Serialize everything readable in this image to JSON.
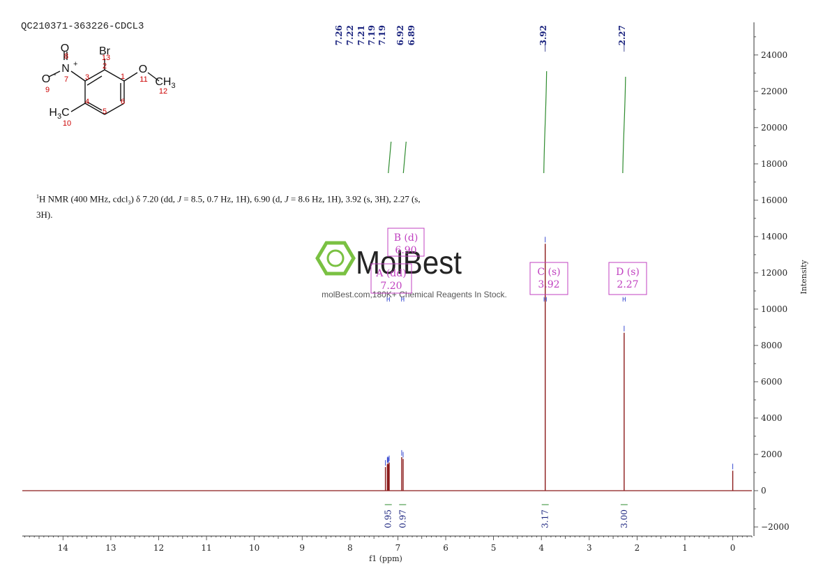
{
  "sample_id": "QC210371-363226-CDCL3",
  "nmr_description": {
    "prefix_sup": "1",
    "prefix": "H NMR (400 MHz, cdcl",
    "solvent_sub": "3",
    "body_1": ") δ 7.20 (dd, ",
    "j1_label": "J",
    "body_2": " = 8.5, 0.7 Hz, 1H), 6.90 (d, ",
    "j2_label": "J",
    "body_3": " = 8.6 Hz, 1H), 3.92 (s, 3H), 2.27 (s, 3H)."
  },
  "watermark": {
    "brand": "MolBest",
    "tagline": "molBest.com,180K+ Chemical Reagents In Stock."
  },
  "molecule": {
    "atoms": [
      {
        "label": "O",
        "num": "8"
      },
      {
        "label": "N",
        "num": "7",
        "charge": "+"
      },
      {
        "label": "O",
        "num": "9",
        "charge": "-"
      },
      {
        "label": "Br",
        "num": "13"
      },
      {
        "label": "O",
        "num": "11"
      },
      {
        "label": "CH",
        "sub": "3",
        "num": "12"
      },
      {
        "label": "H",
        "sub": "3",
        "tail": "C",
        "num": "10"
      }
    ],
    "ring_numbers": [
      "1",
      "2",
      "3",
      "4",
      "5",
      "6"
    ]
  },
  "colors": {
    "spectrum": "#8b1a1a",
    "peak_label": "#1a237e",
    "integral": "#2e8b2e",
    "multiplet_box": "#c040c0",
    "atom_number": "#cc0000",
    "watermark_green": "#7ac142"
  },
  "chart_data": {
    "type": "line",
    "xlabel": "f1 (ppm)",
    "ylabel": "Intensity",
    "x_reversed": true,
    "xlim": [
      -0.4,
      14.85
    ],
    "ylim": [
      -2500,
      25800
    ],
    "x_ticks": [
      14,
      13,
      12,
      11,
      10,
      9,
      8,
      7,
      6,
      5,
      4,
      3,
      2,
      1,
      0
    ],
    "y_ticks": [
      -2000,
      0,
      2000,
      4000,
      6000,
      8000,
      10000,
      12000,
      14000,
      16000,
      18000,
      20000,
      22000,
      24000
    ],
    "peaks": [
      {
        "ppm": 7.26,
        "height": 1300
      },
      {
        "ppm": 7.22,
        "height": 1450
      },
      {
        "ppm": 7.21,
        "height": 1500
      },
      {
        "ppm": 7.19,
        "height": 1450
      },
      {
        "ppm": 7.19,
        "height": 1550
      },
      {
        "ppm": 6.92,
        "height": 1850
      },
      {
        "ppm": 6.89,
        "height": 1750
      },
      {
        "ppm": 3.92,
        "height": 13600
      },
      {
        "ppm": 2.27,
        "height": 8700
      },
      {
        "ppm": 0.0,
        "height": 1100
      }
    ],
    "peak_labels": [
      "7.26",
      "7.22",
      "7.21",
      "7.19",
      "7.19",
      "6.92",
      "6.89",
      "3.92",
      "2.27"
    ],
    "multiplets": [
      {
        "name": "A (dd)",
        "shift": "7.20",
        "ppm": 7.2
      },
      {
        "name": "B (d)",
        "shift": "6.90",
        "ppm": 6.9
      },
      {
        "name": "C (s)",
        "shift": "3.92",
        "ppm": 3.92
      },
      {
        "name": "D (s)",
        "shift": "2.27",
        "ppm": 2.27
      }
    ],
    "integrals": [
      {
        "value": "0.95",
        "ppm": 7.2
      },
      {
        "value": "0.97",
        "ppm": 6.9
      },
      {
        "value": "3.17",
        "ppm": 3.92
      },
      {
        "value": "3.00",
        "ppm": 2.27
      }
    ]
  }
}
